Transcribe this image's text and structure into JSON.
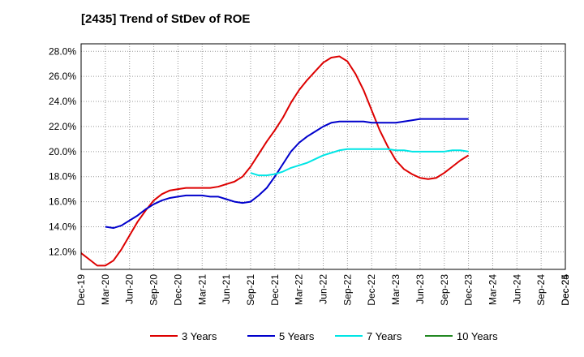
{
  "chart_data": {
    "type": "line",
    "title": "[2435]  Trend of StDev of ROE",
    "xlabel": "",
    "ylabel": "",
    "x_ticks": [
      "Dec-19",
      "Mar-20",
      "Jun-20",
      "Sep-20",
      "Dec-20",
      "Mar-21",
      "Jun-21",
      "Sep-21",
      "Dec-21",
      "Mar-22",
      "Jun-22",
      "Sep-22",
      "Dec-22",
      "Mar-23",
      "Jun-23",
      "Sep-23",
      "Dec-23",
      "Mar-24",
      "Jun-24",
      "Sep-24",
      "Dec-24",
      "Mar-25",
      "Dec-25"
    ],
    "y_ticks": [
      "12.0%",
      "14.0%",
      "16.0%",
      "18.0%",
      "20.0%",
      "22.0%",
      "24.0%",
      "26.0%",
      "28.0%"
    ],
    "ylim": [
      10.6,
      28.6
    ],
    "grid": true,
    "legend_position": "bottom",
    "series": [
      {
        "name": "3 Years",
        "color": "#dd0000",
        "points": [
          [
            0,
            11.9
          ],
          [
            1,
            11.4
          ],
          [
            2,
            10.9
          ],
          [
            3,
            10.9
          ],
          [
            4,
            11.3
          ],
          [
            5,
            12.2
          ],
          [
            6,
            13.3
          ],
          [
            7,
            14.4
          ],
          [
            8,
            15.3
          ],
          [
            9,
            16.1
          ],
          [
            10,
            16.6
          ],
          [
            11,
            16.9
          ],
          [
            12,
            17.0
          ],
          [
            13,
            17.1
          ],
          [
            14,
            17.1
          ],
          [
            15,
            17.1
          ],
          [
            16,
            17.1
          ],
          [
            17,
            17.2
          ],
          [
            18,
            17.4
          ],
          [
            19,
            17.6
          ],
          [
            20,
            18.0
          ],
          [
            21,
            18.8
          ],
          [
            22,
            19.8
          ],
          [
            23,
            20.8
          ],
          [
            24,
            21.7
          ],
          [
            25,
            22.7
          ],
          [
            26,
            23.9
          ],
          [
            27,
            24.9
          ],
          [
            28,
            25.7
          ],
          [
            29,
            26.4
          ],
          [
            30,
            27.1
          ],
          [
            31,
            27.5
          ],
          [
            32,
            27.6
          ],
          [
            33,
            27.2
          ],
          [
            34,
            26.2
          ],
          [
            35,
            24.9
          ],
          [
            36,
            23.3
          ],
          [
            37,
            21.7
          ],
          [
            38,
            20.4
          ],
          [
            39,
            19.3
          ],
          [
            40,
            18.6
          ],
          [
            41,
            18.2
          ],
          [
            42,
            17.9
          ],
          [
            43,
            17.8
          ],
          [
            44,
            17.9
          ],
          [
            45,
            18.3
          ],
          [
            46,
            18.8
          ],
          [
            47,
            19.3
          ],
          [
            48,
            19.7
          ]
        ]
      },
      {
        "name": "5 Years",
        "color": "#0000cc",
        "points": [
          [
            3,
            14.0
          ],
          [
            4,
            13.9
          ],
          [
            5,
            14.1
          ],
          [
            6,
            14.5
          ],
          [
            7,
            14.9
          ],
          [
            8,
            15.4
          ],
          [
            9,
            15.8
          ],
          [
            10,
            16.1
          ],
          [
            11,
            16.3
          ],
          [
            12,
            16.4
          ],
          [
            13,
            16.5
          ],
          [
            14,
            16.5
          ],
          [
            15,
            16.5
          ],
          [
            16,
            16.4
          ],
          [
            17,
            16.4
          ],
          [
            18,
            16.2
          ],
          [
            19,
            16.0
          ],
          [
            20,
            15.9
          ],
          [
            21,
            16.0
          ],
          [
            22,
            16.5
          ],
          [
            23,
            17.1
          ],
          [
            24,
            18.0
          ],
          [
            25,
            19.0
          ],
          [
            26,
            20.0
          ],
          [
            27,
            20.7
          ],
          [
            28,
            21.2
          ],
          [
            29,
            21.6
          ],
          [
            30,
            22.0
          ],
          [
            31,
            22.3
          ],
          [
            32,
            22.4
          ],
          [
            33,
            22.4
          ],
          [
            34,
            22.4
          ],
          [
            35,
            22.4
          ],
          [
            36,
            22.3
          ],
          [
            37,
            22.3
          ],
          [
            38,
            22.3
          ],
          [
            39,
            22.3
          ],
          [
            40,
            22.4
          ],
          [
            41,
            22.5
          ],
          [
            42,
            22.6
          ],
          [
            43,
            22.6
          ],
          [
            44,
            22.6
          ],
          [
            45,
            22.6
          ],
          [
            46,
            22.6
          ],
          [
            47,
            22.6
          ],
          [
            48,
            22.6
          ]
        ]
      },
      {
        "name": "7 Years",
        "color": "#00e5e5",
        "points": [
          [
            21,
            18.3
          ],
          [
            22,
            18.1
          ],
          [
            23,
            18.1
          ],
          [
            24,
            18.2
          ],
          [
            25,
            18.4
          ],
          [
            26,
            18.7
          ],
          [
            27,
            18.9
          ],
          [
            28,
            19.1
          ],
          [
            29,
            19.4
          ],
          [
            30,
            19.7
          ],
          [
            31,
            19.9
          ],
          [
            32,
            20.1
          ],
          [
            33,
            20.2
          ],
          [
            34,
            20.2
          ],
          [
            35,
            20.2
          ],
          [
            36,
            20.2
          ],
          [
            37,
            20.2
          ],
          [
            38,
            20.2
          ],
          [
            39,
            20.1
          ],
          [
            40,
            20.1
          ],
          [
            41,
            20.0
          ],
          [
            42,
            20.0
          ],
          [
            43,
            20.0
          ],
          [
            44,
            20.0
          ],
          [
            45,
            20.0
          ],
          [
            46,
            20.1
          ],
          [
            47,
            20.1
          ],
          [
            48,
            20.0
          ]
        ]
      },
      {
        "name": "10 Years",
        "color": "#228822",
        "points": []
      }
    ]
  }
}
